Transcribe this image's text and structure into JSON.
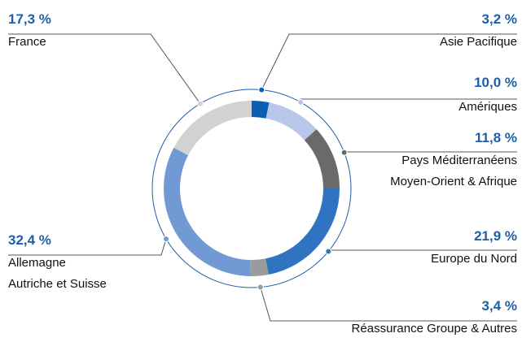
{
  "chart_data": {
    "type": "donut",
    "categories": [
      "Asie Pacifique",
      "Amériques",
      "Pays Méditerranéens \nMoyen-Orient & Afrique",
      "Europe du Nord",
      "Réassurance Groupe & Autres",
      "Allemagne\nAutriche et Suisse",
      "France"
    ],
    "values": [
      3.2,
      10.0,
      11.8,
      21.9,
      3.4,
      32.4,
      17.3
    ],
    "value_labels": [
      "3,2 %",
      "10,0 %",
      "11,8 %",
      "21,9 %",
      "3,4 %",
      "32,4 %",
      "17,3 %"
    ],
    "colors": [
      "#0b5fb3",
      "#b8c6e9",
      "#6a6a6a",
      "#2f73c1",
      "#9b9b9b",
      "#7199d3",
      "#d2d2d2"
    ]
  }
}
